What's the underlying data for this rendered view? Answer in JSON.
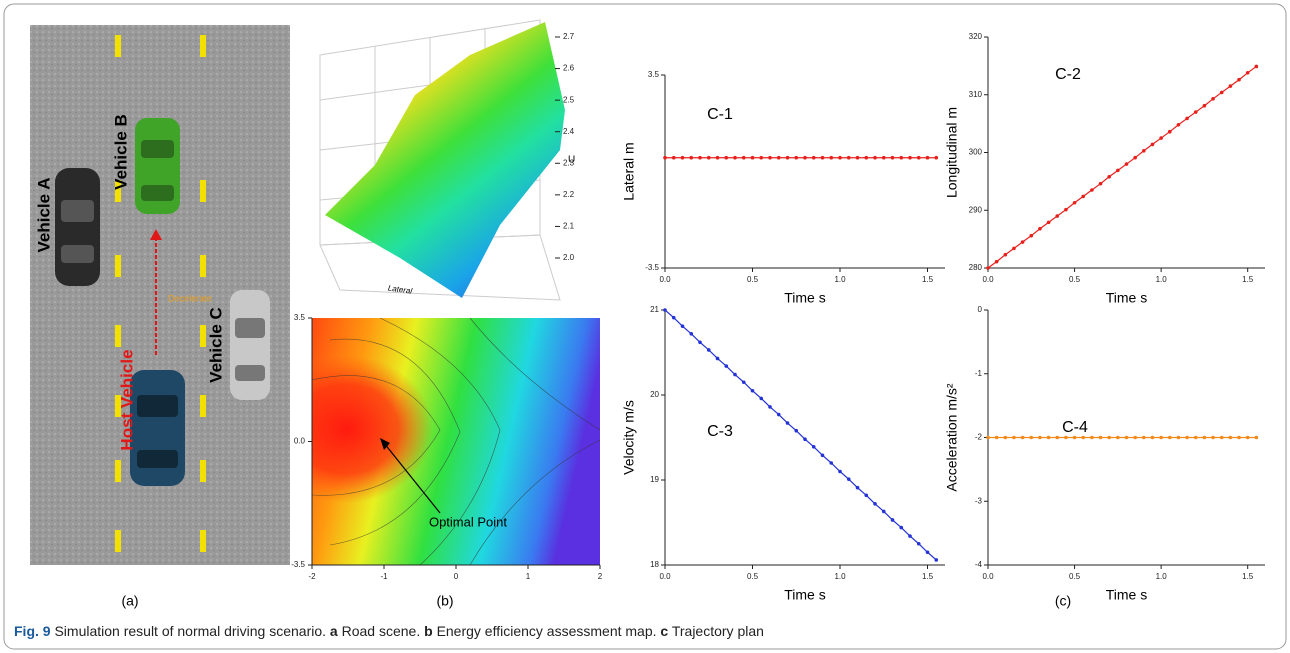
{
  "panel_labels": [
    "(a)",
    "(b)",
    "(c)"
  ],
  "road_scene": {
    "vehicles": [
      "Vehicle A",
      "Vehicle B",
      "Vehicle C",
      "Host Vehicle"
    ],
    "annotation": "Decelerate"
  },
  "surface_plot": {
    "z_label": "U",
    "x_label": "Lateral",
    "zlim": [
      2,
      2.7
    ],
    "zticks": [
      {
        "value": 2,
        "label": "2.0"
      },
      2.1,
      2.2,
      2.3,
      2.4,
      2.5,
      2.6,
      2.7
    ]
  },
  "contour_plot": {
    "annotation": "Optimal Point",
    "xlim": [
      -2,
      2
    ],
    "ylim": [
      -3.5,
      3.5
    ],
    "xticks": [
      -2,
      -1,
      0,
      1,
      2
    ],
    "yticks": [
      3.5,
      {
        "value": 0,
        "label": "0.0"
      },
      -3.5
    ]
  },
  "chart_data": [
    {
      "type": "line",
      "title": "C-1",
      "x_label": "Time s",
      "y_label": "Lateral m",
      "color": "#e8201c",
      "xlim": [
        0,
        1.6
      ],
      "xticks": [
        {
          "value": 0,
          "label": "0.0"
        },
        0.5,
        {
          "value": 1,
          "label": "1.0"
        },
        1.5
      ],
      "ylim": [
        -3.5,
        3.5
      ],
      "yticks": [
        3.5,
        -3.5
      ],
      "x": [
        0,
        0.05,
        0.1,
        0.15,
        0.2,
        0.25,
        0.3,
        0.35,
        0.4,
        0.45,
        0.5,
        0.55,
        0.6,
        0.65,
        0.7,
        0.75,
        0.8,
        0.85,
        0.9,
        0.95,
        1,
        1.05,
        1.1,
        1.15,
        1.2,
        1.25,
        1.3,
        1.35,
        1.4,
        1.45,
        1.5,
        1.55
      ],
      "values": [
        0.5,
        0.5,
        0.5,
        0.5,
        0.5,
        0.5,
        0.5,
        0.5,
        0.5,
        0.5,
        0.5,
        0.5,
        0.5,
        0.5,
        0.5,
        0.5,
        0.5,
        0.5,
        0.5,
        0.5,
        0.5,
        0.5,
        0.5,
        0.5,
        0.5,
        0.5,
        0.5,
        0.5,
        0.5,
        0.5,
        0.5,
        0.5
      ]
    },
    {
      "type": "line",
      "title": "C-2",
      "x_label": "Time s",
      "y_label": "Longitudinal m",
      "color": "#e8201c",
      "xlim": [
        0,
        1.6
      ],
      "xticks": [
        {
          "value": 0,
          "label": "0.0"
        },
        0.5,
        {
          "value": 1,
          "label": "1.0"
        },
        1.5
      ],
      "ylim": [
        280,
        320
      ],
      "yticks": [
        280,
        290,
        300,
        310,
        320
      ],
      "x": [
        0,
        0.05,
        0.1,
        0.15,
        0.2,
        0.25,
        0.3,
        0.35,
        0.4,
        0.45,
        0.5,
        0.55,
        0.6,
        0.65,
        0.7,
        0.75,
        0.8,
        0.85,
        0.9,
        0.95,
        1,
        1.05,
        1.1,
        1.15,
        1.2,
        1.25,
        1.3,
        1.35,
        1.4,
        1.45,
        1.5,
        1.55
      ],
      "values": [
        280,
        281.1,
        282.3,
        283.4,
        284.5,
        285.6,
        286.8,
        287.9,
        289,
        290.1,
        291.3,
        292.4,
        293.5,
        294.6,
        295.8,
        296.9,
        298,
        299.1,
        300.3,
        301.4,
        302.5,
        303.6,
        304.8,
        305.9,
        307,
        308.1,
        309.3,
        310.4,
        311.5,
        312.6,
        313.8,
        314.9
      ]
    },
    {
      "type": "line",
      "title": "C-3",
      "x_label": "Time s",
      "y_label": "Velocity m/s",
      "color": "#2433d6",
      "xlim": [
        0,
        1.6
      ],
      "xticks": [
        {
          "value": 0,
          "label": "0.0"
        },
        0.5,
        {
          "value": 1,
          "label": "1.0"
        },
        1.5
      ],
      "ylim": [
        18,
        21
      ],
      "yticks": [
        18,
        19,
        20,
        21
      ],
      "x": [
        0,
        0.05,
        0.1,
        0.15,
        0.2,
        0.25,
        0.3,
        0.35,
        0.4,
        0.45,
        0.5,
        0.55,
        0.6,
        0.65,
        0.7,
        0.75,
        0.8,
        0.85,
        0.9,
        0.95,
        1,
        1.05,
        1.1,
        1.15,
        1.2,
        1.25,
        1.3,
        1.35,
        1.4,
        1.45,
        1.5,
        1.55
      ],
      "values": [
        21,
        20.91,
        20.81,
        20.72,
        20.62,
        20.53,
        20.43,
        20.34,
        20.24,
        20.15,
        20.05,
        19.96,
        19.86,
        19.77,
        19.67,
        19.58,
        19.48,
        19.39,
        19.29,
        19.2,
        19.1,
        19.01,
        18.91,
        18.82,
        18.72,
        18.63,
        18.53,
        18.44,
        18.34,
        18.25,
        18.15,
        18.06
      ]
    },
    {
      "type": "line",
      "title": "C-4",
      "x_label": "Time s",
      "y_label": "Acceleration m/s²",
      "color": "#f08a1c",
      "xlim": [
        0,
        1.6
      ],
      "xticks": [
        {
          "value": 0,
          "label": "0.0"
        },
        0.5,
        {
          "value": 1,
          "label": "1.0"
        },
        1.5
      ],
      "ylim": [
        -4,
        0
      ],
      "yticks": [
        0,
        -1,
        -2,
        -3,
        -4
      ],
      "x": [
        0,
        0.05,
        0.1,
        0.15,
        0.2,
        0.25,
        0.3,
        0.35,
        0.4,
        0.45,
        0.5,
        0.55,
        0.6,
        0.65,
        0.7,
        0.75,
        0.8,
        0.85,
        0.9,
        0.95,
        1,
        1.05,
        1.1,
        1.15,
        1.2,
        1.25,
        1.3,
        1.35,
        1.4,
        1.45,
        1.5,
        1.55
      ],
      "values": [
        -2,
        -2,
        -2,
        -2,
        -2,
        -2,
        -2,
        -2,
        -2,
        -2,
        -2,
        -2,
        -2,
        -2,
        -2,
        -2,
        -2,
        -2,
        -2,
        -2,
        -2,
        -2,
        -2,
        -2,
        -2,
        -2,
        -2,
        -2,
        -2,
        -2,
        -2,
        -2
      ]
    }
  ],
  "caption": {
    "label": "Fig. 9",
    "text": "Simulation result of normal driving scenario.",
    "parts": [
      {
        "letter": "a",
        "text": "Road scene."
      },
      {
        "letter": "b",
        "text": "Energy efficiency assessment map."
      },
      {
        "letter": "c",
        "text": "Trajectory plan"
      }
    ]
  }
}
